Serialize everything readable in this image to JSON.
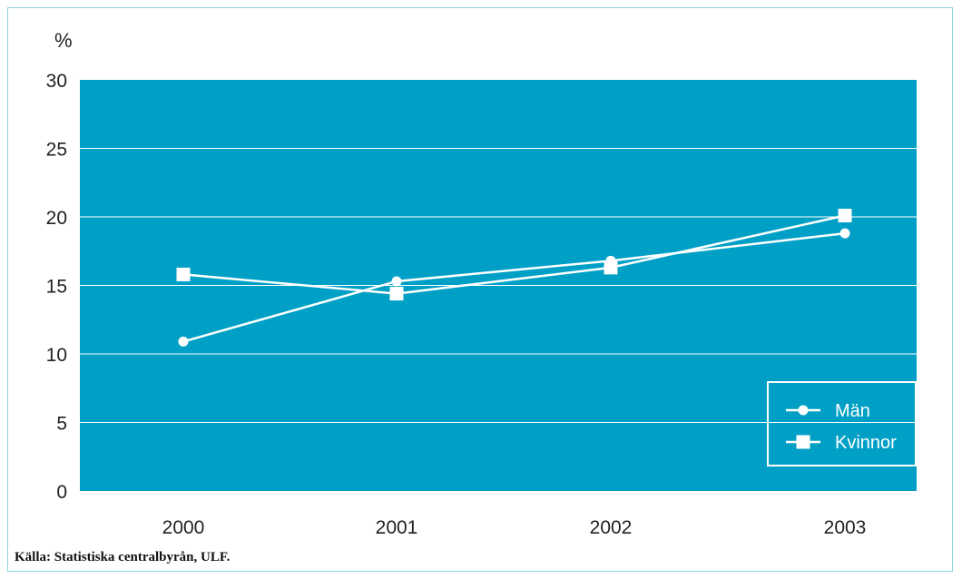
{
  "chart_data": {
    "type": "line",
    "ylabel": "%",
    "xlabel": "",
    "categories": [
      "2000",
      "2001",
      "2002",
      "2003"
    ],
    "ylim": [
      0,
      30
    ],
    "yticks": [
      "0",
      "5",
      "10",
      "15",
      "20",
      "25",
      "30"
    ],
    "grid": true,
    "legend_position": "bottom-right",
    "series": [
      {
        "name": "Män",
        "marker": "circle",
        "values": [
          10.9,
          15.3,
          16.8,
          18.8
        ]
      },
      {
        "name": "Kvinnor",
        "marker": "square",
        "values": [
          15.8,
          14.4,
          16.3,
          20.1
        ]
      }
    ],
    "colors": {
      "plot_background": "#00a0c6",
      "lines": "#ffffff",
      "grid": "#ffffff"
    }
  },
  "source": "Källa: Statistiska centralbyrån, ULF."
}
